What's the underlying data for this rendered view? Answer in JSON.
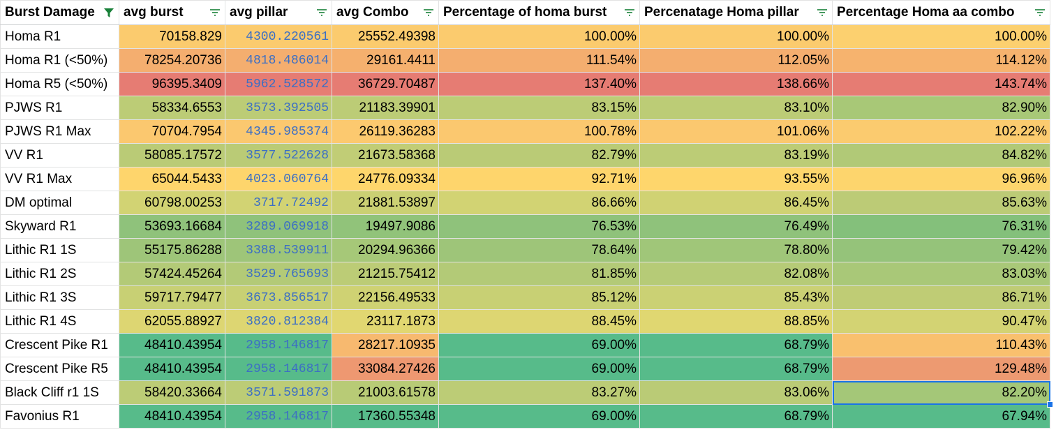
{
  "sheet": {
    "headers": [
      "Burst Damage",
      "avg burst",
      "avg pillar",
      "avg Combo",
      "Percentage of homa burst",
      "Percenatage Homa pillar",
      "Percentage Homa aa combo"
    ],
    "filter_active_color": "#188038",
    "filter_icon_color": "#188038",
    "rows": [
      {
        "name": "Homa R1",
        "burst": "70158.829",
        "pillar": "4300.220561",
        "combo": "25552.49398",
        "pb": "100.00%",
        "pp": "100.00%",
        "pc": "100.00%",
        "colors": [
          "#fbcb6e",
          "#fbcb6e",
          "#fbcb6e",
          "#fbcb6e",
          "#fbcb6e",
          "#fcd06f"
        ]
      },
      {
        "name": "Homa R1 (<50%)",
        "burst": "78254.20736",
        "pillar": "4818.486014",
        "combo": "29161.4411",
        "pb": "111.54%",
        "pp": "112.05%",
        "pc": "114.12%",
        "colors": [
          "#f4ae6f",
          "#f4ae6f",
          "#f5b06e",
          "#f4ae6f",
          "#f4ae6f",
          "#f6b36e"
        ]
      },
      {
        "name": "Homa R5 (<50%)",
        "burst": "96395.3409",
        "pillar": "5962.528572",
        "combo": "36729.70487",
        "pb": "137.40%",
        "pp": "138.66%",
        "pc": "143.74%",
        "colors": [
          "#e67c73",
          "#e67c73",
          "#e67c73",
          "#e67c73",
          "#e67c73",
          "#e67c73"
        ]
      },
      {
        "name": "PJWS R1",
        "burst": "58334.6553",
        "pillar": "3573.392505",
        "combo": "21183.39901",
        "pb": "83.15%",
        "pp": "83.10%",
        "pc": "82.90%",
        "colors": [
          "#bccc76",
          "#bccc76",
          "#bccc76",
          "#bccc76",
          "#bccc76",
          "#a8c877"
        ]
      },
      {
        "name": "PJWS R1 Max",
        "burst": "70704.7954",
        "pillar": "4345.985374",
        "combo": "26119.36283",
        "pb": "100.78%",
        "pp": "101.06%",
        "pc": "102.22%",
        "colors": [
          "#fbc86f",
          "#fbc86f",
          "#fcc96f",
          "#fbc86f",
          "#fbc86f",
          "#fbcb6f"
        ]
      },
      {
        "name": "VV R1",
        "burst": "58085.17572",
        "pillar": "3577.522628",
        "combo": "21673.58368",
        "pb": "82.79%",
        "pp": "83.19%",
        "pc": "84.82%",
        "colors": [
          "#bacb76",
          "#bacb76",
          "#c1cd76",
          "#bacb76",
          "#bccc76",
          "#b1c977"
        ]
      },
      {
        "name": "VV R1 Max",
        "burst": "65044.5433",
        "pillar": "4023.060764",
        "combo": "24776.09334",
        "pb": "92.71%",
        "pp": "93.55%",
        "pc": "96.96%",
        "colors": [
          "#fed56c",
          "#fed56c",
          "#fed66c",
          "#fed56c",
          "#fed66c",
          "#fdd56d"
        ]
      },
      {
        "name": "DM optimal",
        "burst": "60798.00253",
        "pillar": "3717.72492",
        "combo": "21881.53897",
        "pb": "86.66%",
        "pp": "86.45%",
        "pc": "85.63%",
        "colors": [
          "#d2d373",
          "#d2d373",
          "#cbd073",
          "#d2d373",
          "#d0d273",
          "#bccb76"
        ]
      },
      {
        "name": "Skyward R1",
        "burst": "53693.16684",
        "pillar": "3289.069918",
        "combo": "19497.9086",
        "pb": "76.53%",
        "pp": "76.49%",
        "pc": "76.31%",
        "colors": [
          "#8fc27b",
          "#8fc27b",
          "#91c37a",
          "#8fc27b",
          "#8fc27b",
          "#84c07b"
        ]
      },
      {
        "name": "Lithic R1 1S",
        "burst": "55175.86288",
        "pillar": "3388.539911",
        "combo": "20294.96366",
        "pb": "78.64%",
        "pp": "78.80%",
        "pc": "79.42%",
        "colors": [
          "#9ec579",
          "#9ec579",
          "#a6c878",
          "#9ec579",
          "#a0c679",
          "#95c37a"
        ]
      },
      {
        "name": "Lithic R1 2S",
        "burst": "57424.45264",
        "pillar": "3529.765693",
        "combo": "21215.75412",
        "pb": "81.85%",
        "pp": "82.08%",
        "pc": "83.03%",
        "colors": [
          "#b3ca77",
          "#b3ca77",
          "#bccc76",
          "#b3ca77",
          "#b6cb77",
          "#a9c878"
        ]
      },
      {
        "name": "Lithic R1 3S",
        "burst": "59717.79477",
        "pillar": "3673.856517",
        "combo": "22156.49533",
        "pb": "85.12%",
        "pp": "85.43%",
        "pc": "86.71%",
        "colors": [
          "#c8d074",
          "#c8d074",
          "#cfd273",
          "#c8d074",
          "#cbd174",
          "#bfcc75"
        ]
      },
      {
        "name": "Lithic R1 4S",
        "burst": "62055.88927",
        "pillar": "3820.812384",
        "combo": "23117.1873",
        "pb": "88.45%",
        "pp": "88.85%",
        "pc": "90.47%",
        "colors": [
          "#ddd672",
          "#ddd672",
          "#e1d771",
          "#ddd672",
          "#e0d771",
          "#d3d373"
        ]
      },
      {
        "name": "Crescent Pike R1",
        "burst": "48410.43954",
        "pillar": "2958.146817",
        "combo": "28217.10935",
        "pb": "69.00%",
        "pp": "68.79%",
        "pc": "110.43%",
        "colors": [
          "#57bb8a",
          "#57bb8a",
          "#f7b96f",
          "#57bb8a",
          "#57bb8a",
          "#f9c06e"
        ]
      },
      {
        "name": "Crescent Pike R5",
        "burst": "48410.43954",
        "pillar": "2958.146817",
        "combo": "33084.27426",
        "pb": "69.00%",
        "pp": "68.79%",
        "pc": "129.48%",
        "colors": [
          "#57bb8a",
          "#57bb8a",
          "#ee9871",
          "#57bb8a",
          "#57bb8a",
          "#ed9a71"
        ]
      },
      {
        "name": "Black Cliff r1 1S",
        "burst": "58420.33664",
        "pillar": "3571.591873",
        "combo": "21003.61578",
        "pb": "83.27%",
        "pp": "83.06%",
        "pc": "82.20%",
        "colors": [
          "#bccc76",
          "#bccc76",
          "#b8cb76",
          "#bccc76",
          "#bacb76",
          "#a4c778"
        ]
      },
      {
        "name": "Favonius R1",
        "burst": "48410.43954",
        "pillar": "2958.146817",
        "combo": "17360.55348",
        "pb": "69.00%",
        "pp": "68.79%",
        "pc": "67.94%",
        "colors": [
          "#57bb8a",
          "#57bb8a",
          "#57bb8a",
          "#57bb8a",
          "#57bb8a",
          "#57bb8a"
        ]
      }
    ]
  }
}
